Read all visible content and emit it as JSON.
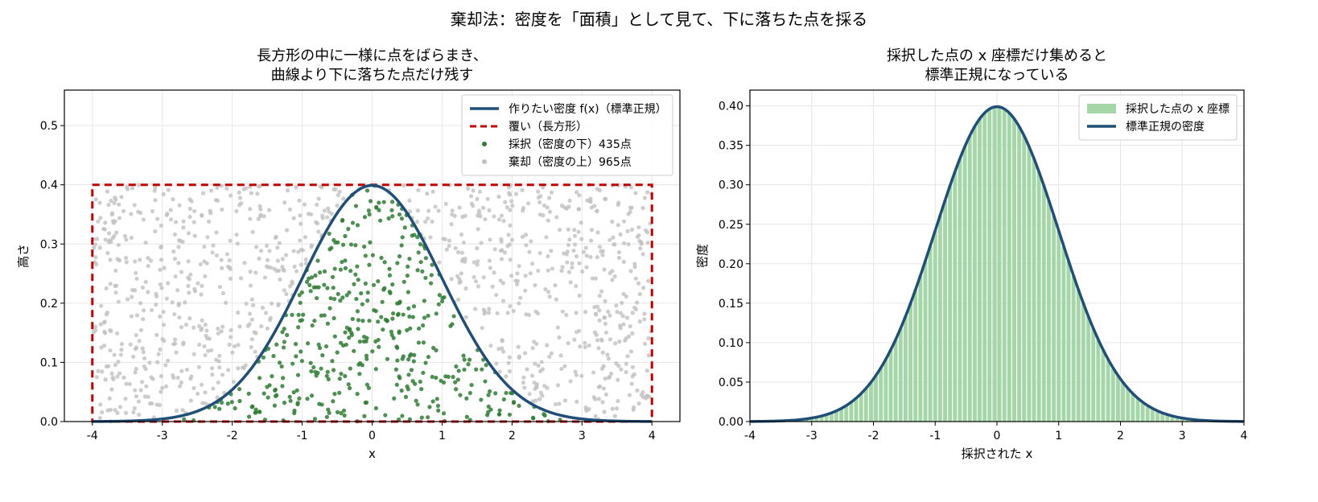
{
  "figure": {
    "suptitle": "棄却法：密度を「面積」として見て、下に落ちた点を採る"
  },
  "chart_data": [
    {
      "type": "scatter",
      "title_lines": [
        "長方形の中に一様に点をばらまき、",
        "曲線より下に落ちた点だけ残す"
      ],
      "xlabel": "x",
      "ylabel": "高さ",
      "xlim": [
        -4.4,
        4.4
      ],
      "ylim": [
        0,
        0.56
      ],
      "xticks": [
        "-4",
        "-3",
        "-2",
        "-1",
        "0",
        "1",
        "2",
        "3",
        "4"
      ],
      "yticks": [
        "0.0",
        "0.1",
        "0.2",
        "0.3",
        "0.4",
        "0.5"
      ],
      "grid": true,
      "legend_position": "top-right",
      "series": [
        {
          "name": "作りたい密度 f(x)（標準正規）",
          "kind": "line",
          "color": "#1f4e79",
          "function": "standard_normal_pdf",
          "x_range": [
            -4,
            4
          ]
        },
        {
          "name": "覆い（長方形）",
          "kind": "dashed-rectangle",
          "color": "#c00000",
          "x_range": [
            -4,
            4
          ],
          "y_range": [
            0,
            0.4
          ]
        },
        {
          "name": "採択（密度の下）435点",
          "kind": "scatter",
          "color": "#2e7d32",
          "count": 435
        },
        {
          "name": "棄却（密度の上）965点",
          "kind": "scatter",
          "color": "#c0c0c0",
          "count": 965
        }
      ]
    },
    {
      "type": "bar",
      "title_lines": [
        "採択した点の x 座標だけ集めると",
        "標準正規になっている"
      ],
      "xlabel": "採択された x",
      "ylabel": "密度",
      "xlim": [
        -4,
        4
      ],
      "ylim": [
        0,
        0.42
      ],
      "xticks": [
        "-4",
        "-3",
        "-2",
        "-1",
        "0",
        "1",
        "2",
        "3",
        "4"
      ],
      "yticks": [
        "0.00",
        "0.05",
        "0.10",
        "0.15",
        "0.20",
        "0.25",
        "0.30",
        "0.35",
        "0.40"
      ],
      "grid": true,
      "legend_position": "top-right",
      "series": [
        {
          "name": "採択した点の x 座標",
          "kind": "histogram",
          "color": "#a5d6a7",
          "bin_width": 0.08,
          "x_range": [
            -4,
            4
          ],
          "values_follow": "standard_normal_pdf"
        },
        {
          "name": "標準正規の密度",
          "kind": "line",
          "color": "#1f4e79",
          "function": "standard_normal_pdf",
          "x_range": [
            -4,
            4
          ]
        }
      ]
    }
  ]
}
